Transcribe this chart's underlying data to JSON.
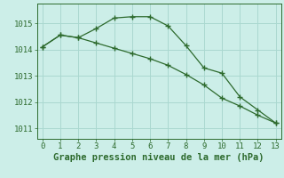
{
  "x": [
    0,
    1,
    2,
    3,
    4,
    5,
    6,
    7,
    8,
    9,
    10,
    11,
    12,
    13
  ],
  "line1": [
    1014.1,
    1014.55,
    1014.45,
    1014.8,
    1015.2,
    1015.25,
    1015.25,
    1014.9,
    1014.15,
    1013.3,
    1013.1,
    1012.2,
    1011.7,
    1011.2
  ],
  "line2": [
    1014.1,
    1014.55,
    1014.45,
    1014.25,
    1014.05,
    1013.85,
    1013.65,
    1013.4,
    1013.05,
    1012.65,
    1012.15,
    1011.85,
    1011.5,
    1011.2
  ],
  "line_color": "#2d6a2d",
  "bg_color": "#cceee8",
  "grid_color": "#aad8d0",
  "xlabel": "Graphe pression niveau de la mer (hPa)",
  "ylim": [
    1010.6,
    1015.75
  ],
  "yticks": [
    1011,
    1012,
    1013,
    1014,
    1015
  ],
  "xticks": [
    0,
    1,
    2,
    3,
    4,
    5,
    6,
    7,
    8,
    9,
    10,
    11,
    12,
    13
  ],
  "marker": "+",
  "linewidth": 0.9,
  "markersize": 5,
  "markeredgewidth": 1.0,
  "xlabel_fontsize": 7.5,
  "tick_fontsize": 6.5
}
